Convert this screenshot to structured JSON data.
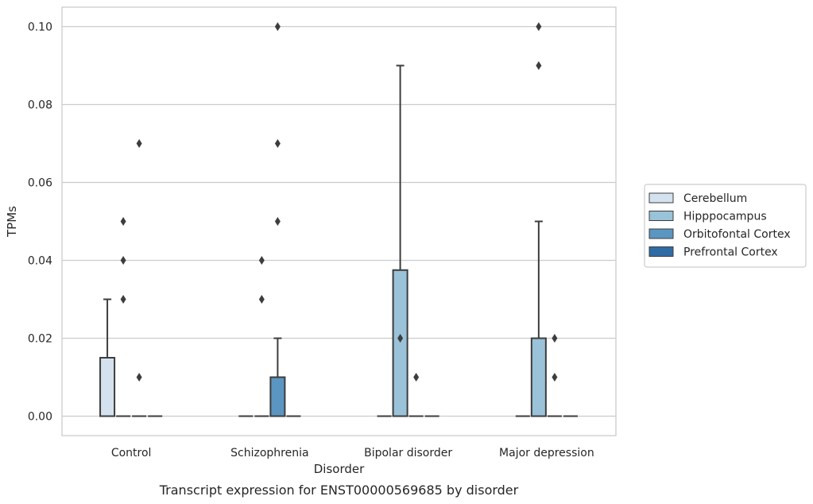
{
  "chart_data": {
    "type": "box",
    "xlabel": "Disorder",
    "ylabel": "TPMs",
    "caption": "Transcript expression for ENST00000569685 by disorder",
    "ylim": [
      -0.005,
      0.105
    ],
    "yticks": [
      "0.00",
      "0.02",
      "0.04",
      "0.06",
      "0.08",
      "0.10"
    ],
    "grid": "horizontal",
    "legend_position": "right",
    "categories": [
      "Control",
      "Schizophrenia",
      "Bipolar disorder",
      "Major depression"
    ],
    "series": [
      {
        "name": "Cerebellum",
        "color": "#d4e2ef",
        "boxes": [
          {
            "q1": 0,
            "median": 0,
            "q3": 0.015,
            "whisker_low": 0,
            "whisker_high": 0.03,
            "outliers": []
          },
          {
            "q1": 0,
            "median": 0,
            "q3": 0,
            "whisker_low": 0,
            "whisker_high": 0,
            "outliers": []
          },
          {
            "q1": 0,
            "median": 0,
            "q3": 0,
            "whisker_low": 0,
            "whisker_high": 0,
            "outliers": []
          },
          {
            "q1": 0,
            "median": 0,
            "q3": 0,
            "whisker_low": 0,
            "whisker_high": 0,
            "outliers": []
          }
        ]
      },
      {
        "name": "Hipppocampus",
        "color": "#9ac2d9",
        "boxes": [
          {
            "q1": 0,
            "median": 0,
            "q3": 0,
            "whisker_low": 0,
            "whisker_high": 0,
            "outliers": [
              0.03,
              0.04,
              0.05
            ]
          },
          {
            "q1": 0,
            "median": 0,
            "q3": 0,
            "whisker_low": 0,
            "whisker_high": 0,
            "outliers": [
              0.03,
              0.04
            ]
          },
          {
            "q1": 0,
            "median": 0,
            "q3": 0.0375,
            "whisker_low": 0,
            "whisker_high": 0.09,
            "outliers": [
              0.02
            ]
          },
          {
            "q1": 0,
            "median": 0,
            "q3": 0.02,
            "whisker_low": 0,
            "whisker_high": 0.05,
            "outliers": [
              0.09,
              0.1
            ]
          }
        ]
      },
      {
        "name": "Orbitofontal Cortex",
        "color": "#5a96c1",
        "boxes": [
          {
            "q1": 0,
            "median": 0,
            "q3": 0,
            "whisker_low": 0,
            "whisker_high": 0,
            "outliers": [
              0.01,
              0.07
            ]
          },
          {
            "q1": 0,
            "median": 0,
            "q3": 0.01,
            "whisker_low": 0,
            "whisker_high": 0.02,
            "outliers": [
              0.05,
              0.07,
              0.1
            ]
          },
          {
            "q1": 0,
            "median": 0,
            "q3": 0,
            "whisker_low": 0,
            "whisker_high": 0,
            "outliers": [
              0.01
            ]
          },
          {
            "q1": 0,
            "median": 0,
            "q3": 0,
            "whisker_low": 0,
            "whisker_high": 0,
            "outliers": [
              0.01,
              0.02
            ]
          }
        ]
      },
      {
        "name": "Prefrontal Cortex",
        "color": "#2f6ca4",
        "boxes": [
          {
            "q1": 0,
            "median": 0,
            "q3": 0,
            "whisker_low": 0,
            "whisker_high": 0,
            "outliers": []
          },
          {
            "q1": 0,
            "median": 0,
            "q3": 0,
            "whisker_low": 0,
            "whisker_high": 0,
            "outliers": []
          },
          {
            "q1": 0,
            "median": 0,
            "q3": 0,
            "whisker_low": 0,
            "whisker_high": 0,
            "outliers": []
          },
          {
            "q1": 0,
            "median": 0,
            "q3": 0,
            "whisker_low": 0,
            "whisker_high": 0,
            "outliers": []
          }
        ]
      }
    ]
  }
}
